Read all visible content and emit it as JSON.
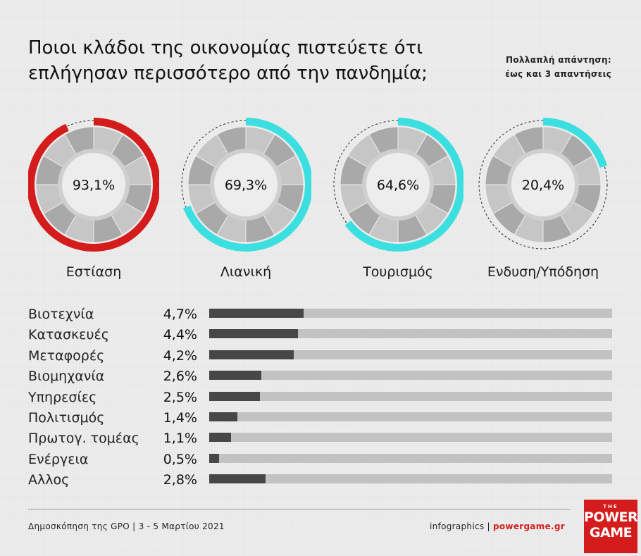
{
  "title": {
    "line1": "Ποιοι κλάδοι της οικονομίας πιστεύετε ότι",
    "line2": "επλήγησαν περισσότερο από την πανδημία;"
  },
  "note": {
    "line1": "Πολλαπλή απάντηση:",
    "line2": "έως και 3 απαντήσεις"
  },
  "colors": {
    "red": "#d51c1c",
    "cyan": "#3cdfdf",
    "bar_fill": "#474747",
    "bar_track": "#c2c2c2",
    "ring_dark": "#a9a9a9",
    "ring_light": "#c6c6c6",
    "inner": "#ededed"
  },
  "chart_data": [
    {
      "type": "pie",
      "items": [
        {
          "label": "Εστίαση",
          "value": 93.1,
          "display": "93,1%",
          "color": "#d51c1c"
        },
        {
          "label": "Λιανική",
          "value": 69.3,
          "display": "69,3%",
          "color": "#3cdfdf"
        },
        {
          "label": "Τουρισμός",
          "value": 64.6,
          "display": "64,6%",
          "color": "#3cdfdf"
        },
        {
          "label": "Ενδυση/Υπόδηση",
          "value": 20.4,
          "display": "20,4%",
          "color": "#3cdfdf"
        }
      ]
    },
    {
      "type": "bar",
      "orientation": "horizontal",
      "xlim": [
        0,
        20
      ],
      "categories": [
        "Βιοτεχνία",
        "Κατασκευές",
        "Μεταφορές",
        "Βιομηχανία",
        "Υπηρεσίες",
        "Πολιτισμός",
        "Πρωτογ. τομέας",
        "Ενέργεια",
        "Αλλος"
      ],
      "values": [
        4.7,
        4.4,
        4.2,
        2.6,
        2.5,
        1.4,
        1.1,
        0.5,
        2.8
      ],
      "display": [
        "4,7%",
        "4,4%",
        "4,2%",
        "2,6%",
        "2,5%",
        "1,4%",
        "1,1%",
        "0,5%",
        "2,8%"
      ]
    }
  ],
  "footer": {
    "source": "Δημοσκόπηση της GPO |  3 - 5 Μαρτίου 2021",
    "credit": "infographics | ",
    "site": "powergame.gr"
  },
  "logo": {
    "the": "THE",
    "line1": "POWER",
    "line2": "GAME"
  }
}
